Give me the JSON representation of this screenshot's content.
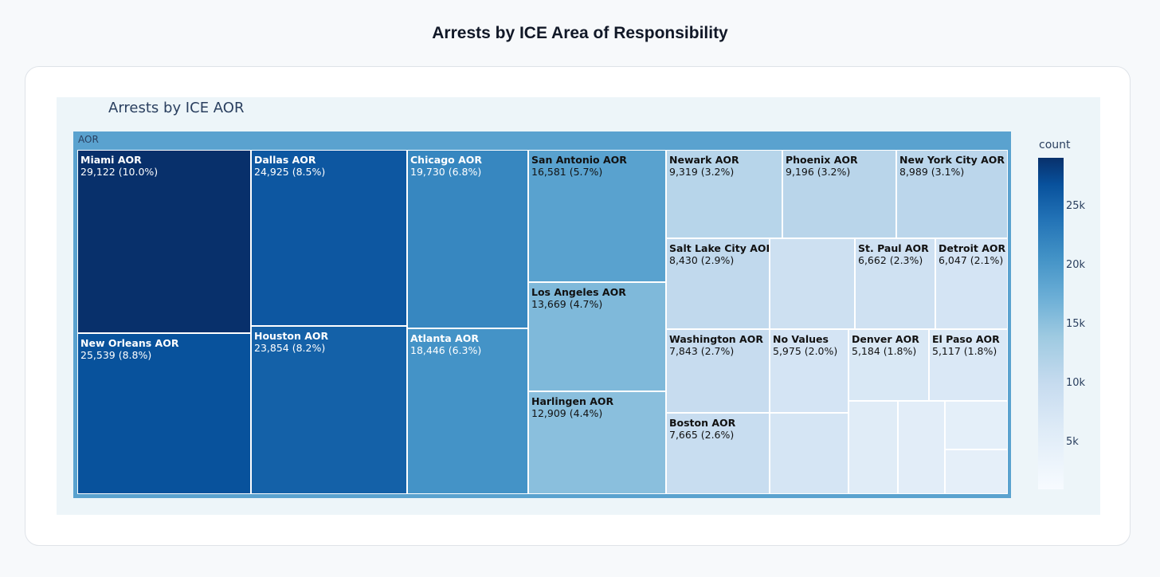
{
  "page": {
    "title": "Arrests by ICE Area of Responsibility"
  },
  "chart_data": {
    "type": "treemap",
    "title": "Arrests by ICE AOR",
    "root": {
      "label": "AOR"
    },
    "colorbar": {
      "title": "count",
      "ticks": [
        "25k",
        "20k",
        "15k",
        "10k",
        "5k"
      ],
      "tick_values": [
        25000,
        20000,
        15000,
        10000,
        5000
      ],
      "range": [
        1000,
        29122
      ],
      "colorscale": "Blues"
    },
    "nodes": [
      {
        "label": "Miami AOR",
        "text": "29,122 (10.0%)",
        "value": 29122,
        "percent": 10.0
      },
      {
        "label": "New Orleans AOR",
        "text": "25,539 (8.8%)",
        "value": 25539,
        "percent": 8.8
      },
      {
        "label": "Dallas AOR",
        "text": "24,925 (8.5%)",
        "value": 24925,
        "percent": 8.5
      },
      {
        "label": "Houston AOR",
        "text": "23,854 (8.2%)",
        "value": 23854,
        "percent": 8.2
      },
      {
        "label": "Chicago AOR",
        "text": "19,730 (6.8%)",
        "value": 19730,
        "percent": 6.8
      },
      {
        "label": "Atlanta AOR",
        "text": "18,446 (6.3%)",
        "value": 18446,
        "percent": 6.3
      },
      {
        "label": "San Antonio AOR",
        "text": "16,581 (5.7%)",
        "value": 16581,
        "percent": 5.7
      },
      {
        "label": "Los Angeles AOR",
        "text": "13,669 (4.7%)",
        "value": 13669,
        "percent": 4.7
      },
      {
        "label": "Harlingen AOR",
        "text": "12,909 (4.4%)",
        "value": 12909,
        "percent": 4.4
      },
      {
        "label": "Newark AOR",
        "text": "9,319 (3.2%)",
        "value": 9319,
        "percent": 3.2
      },
      {
        "label": "Phoenix AOR",
        "text": "9,196 (3.2%)",
        "value": 9196,
        "percent": 3.2
      },
      {
        "label": "New York City AOR",
        "text": "8,989 (3.1%)",
        "value": 8989,
        "percent": 3.1
      },
      {
        "label": "Salt Lake City AOR",
        "text": "8,430 (2.9%)",
        "value": 8430,
        "percent": 2.9
      },
      {
        "label": "",
        "text": "",
        "value": 7000,
        "percent": null
      },
      {
        "label": "St. Paul AOR",
        "text": "6,662 (2.3%)",
        "value": 6662,
        "percent": 2.3
      },
      {
        "label": "Detroit AOR",
        "text": "6,047 (2.1%)",
        "value": 6047,
        "percent": 2.1
      },
      {
        "label": "Washington AOR",
        "text": "7,843 (2.7%)",
        "value": 7843,
        "percent": 2.7
      },
      {
        "label": "Boston AOR",
        "text": "7,665 (2.6%)",
        "value": 7665,
        "percent": 2.6
      },
      {
        "label": "No Values",
        "text": "5,975 (2.0%)",
        "value": 5975,
        "percent": 2.0
      },
      {
        "label": "",
        "text": "",
        "value": 5900,
        "percent": null
      },
      {
        "label": "Denver AOR",
        "text": "5,184 (1.8%)",
        "value": 5184,
        "percent": 1.8
      },
      {
        "label": "El Paso AOR",
        "text": "5,117 (1.8%)",
        "value": 5117,
        "percent": 1.8
      },
      {
        "label": "",
        "text": "",
        "value": 4300,
        "percent": null
      },
      {
        "label": "",
        "text": "",
        "value": 4000,
        "percent": null
      },
      {
        "label": "",
        "text": "",
        "value": 3700,
        "percent": null
      },
      {
        "label": "",
        "text": "",
        "value": 3600,
        "percent": null
      }
    ]
  }
}
